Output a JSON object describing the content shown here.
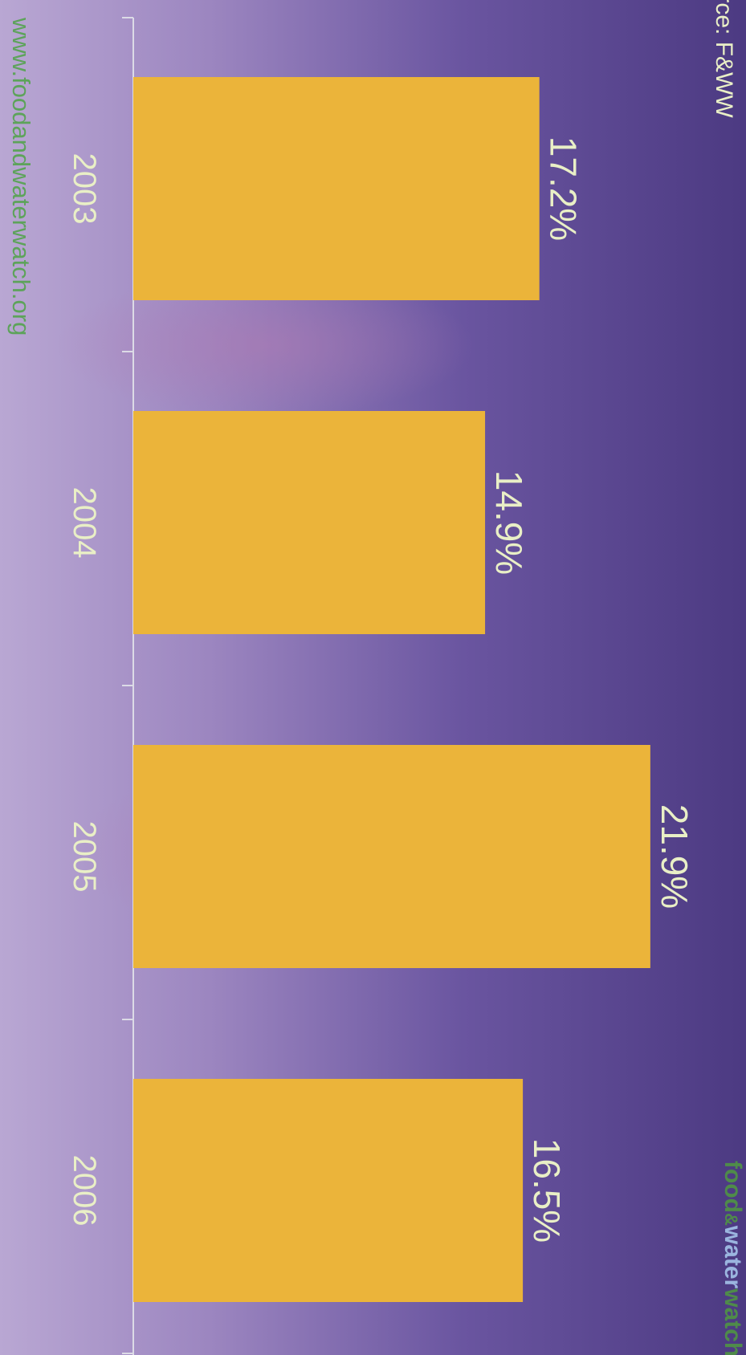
{
  "source_label": "Source: F&WW",
  "website": "www.foodandwaterwatch.org",
  "logo": {
    "part1": "food",
    "part2": "&",
    "part3": "water",
    "part4": "watch"
  },
  "colors": {
    "bar": "#ebb43a",
    "label_text": "#e9efc6",
    "axis": "#dcdbe6",
    "website_text": "#5da35a",
    "logo_green": "#4f8b4a",
    "logo_blue": "#9bb5df",
    "background_light": "#b7a4d0",
    "background_dark": "#4d3b82"
  },
  "chart_data": {
    "type": "bar",
    "orientation": "vertical",
    "categories": [
      "2003",
      "2004",
      "2005",
      "2006"
    ],
    "values": [
      17.2,
      14.9,
      21.9,
      16.5
    ],
    "data_labels": [
      "17.2%",
      "14.9%",
      "21.9%",
      "16.5%"
    ],
    "title": "",
    "xlabel": "",
    "ylabel": "",
    "ylim": [
      0,
      26
    ],
    "grid": false,
    "legend": "none"
  }
}
